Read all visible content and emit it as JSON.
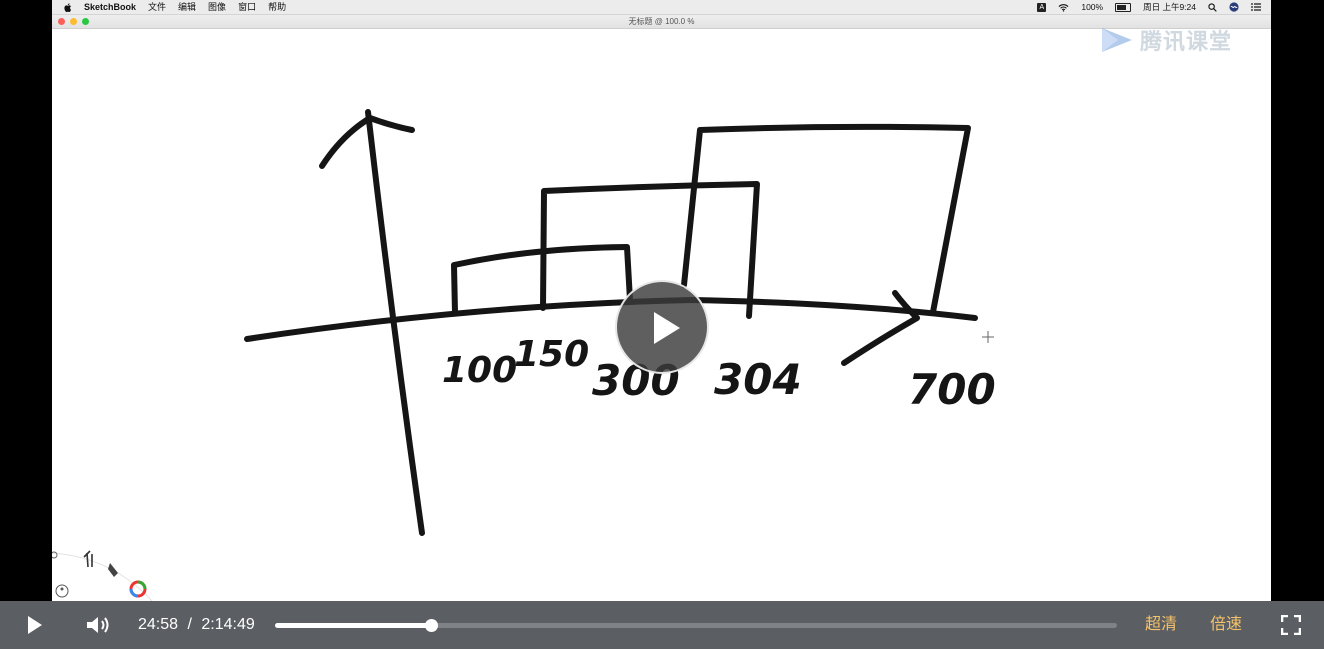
{
  "menubar": {
    "app_name": "SketchBook",
    "menus": [
      "文件",
      "编辑",
      "图像",
      "窗口",
      "帮助"
    ],
    "input_indicator": "A",
    "battery": "100%",
    "clock": "周日 上午9:24"
  },
  "window": {
    "title": "无标题 @ 100.0 %"
  },
  "watermark": {
    "text": "腾讯课堂"
  },
  "canvas": {
    "labels": [
      "100",
      "150",
      "300",
      "304",
      "700"
    ]
  },
  "player": {
    "current_time": "24:58",
    "separator": "/",
    "duration": "2:14:49",
    "progress_fraction": 0.185,
    "quality_label": "超清",
    "speed_label": "倍速"
  },
  "colors": {
    "control_bar": "#5b5e62",
    "accent_text": "#f5c36a",
    "ink": "#151515"
  }
}
